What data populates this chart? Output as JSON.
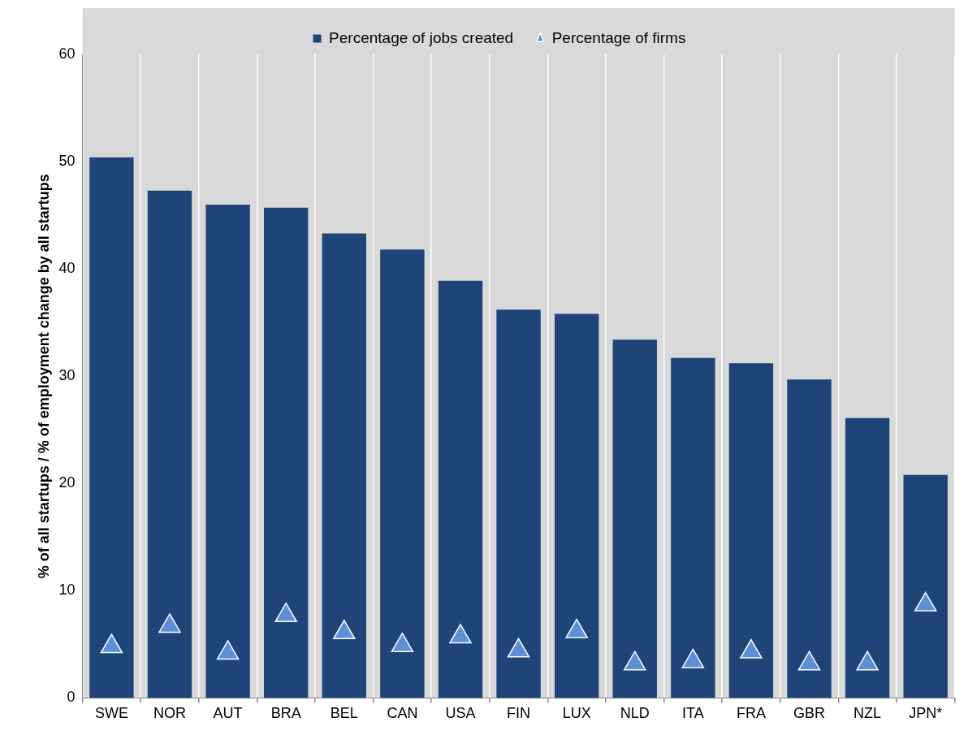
{
  "chart_data": {
    "type": "bar",
    "ylabel": "% of all startups / % of employment change by all startups",
    "categories": [
      "SWE",
      "NOR",
      "AUT",
      "BRA",
      "BEL",
      "CAN",
      "USA",
      "FIN",
      "LUX",
      "NLD",
      "ITA",
      "FRA",
      "GBR",
      "NZL",
      "JPN*"
    ],
    "series": [
      {
        "name": "Percentage of jobs created",
        "color": "#1f4478",
        "values": [
          50.4,
          47.3,
          46.0,
          45.7,
          43.3,
          41.8,
          38.9,
          36.2,
          35.8,
          33.4,
          31.7,
          31.2,
          29.7,
          26.1,
          20.8
        ]
      },
      {
        "name": "Percentage of firms",
        "type": "scatter",
        "color": "#5b8fd6",
        "marker": "triangle",
        "values": [
          4.8,
          6.7,
          4.2,
          7.7,
          6.1,
          4.9,
          5.7,
          4.4,
          6.2,
          3.2,
          3.4,
          4.3,
          3.2,
          3.2,
          8.7
        ]
      }
    ],
    "ylim": [
      0,
      60
    ],
    "yticks": [
      0,
      10,
      20,
      30,
      40,
      50,
      60
    ],
    "grid": "x",
    "legend": "top"
  }
}
